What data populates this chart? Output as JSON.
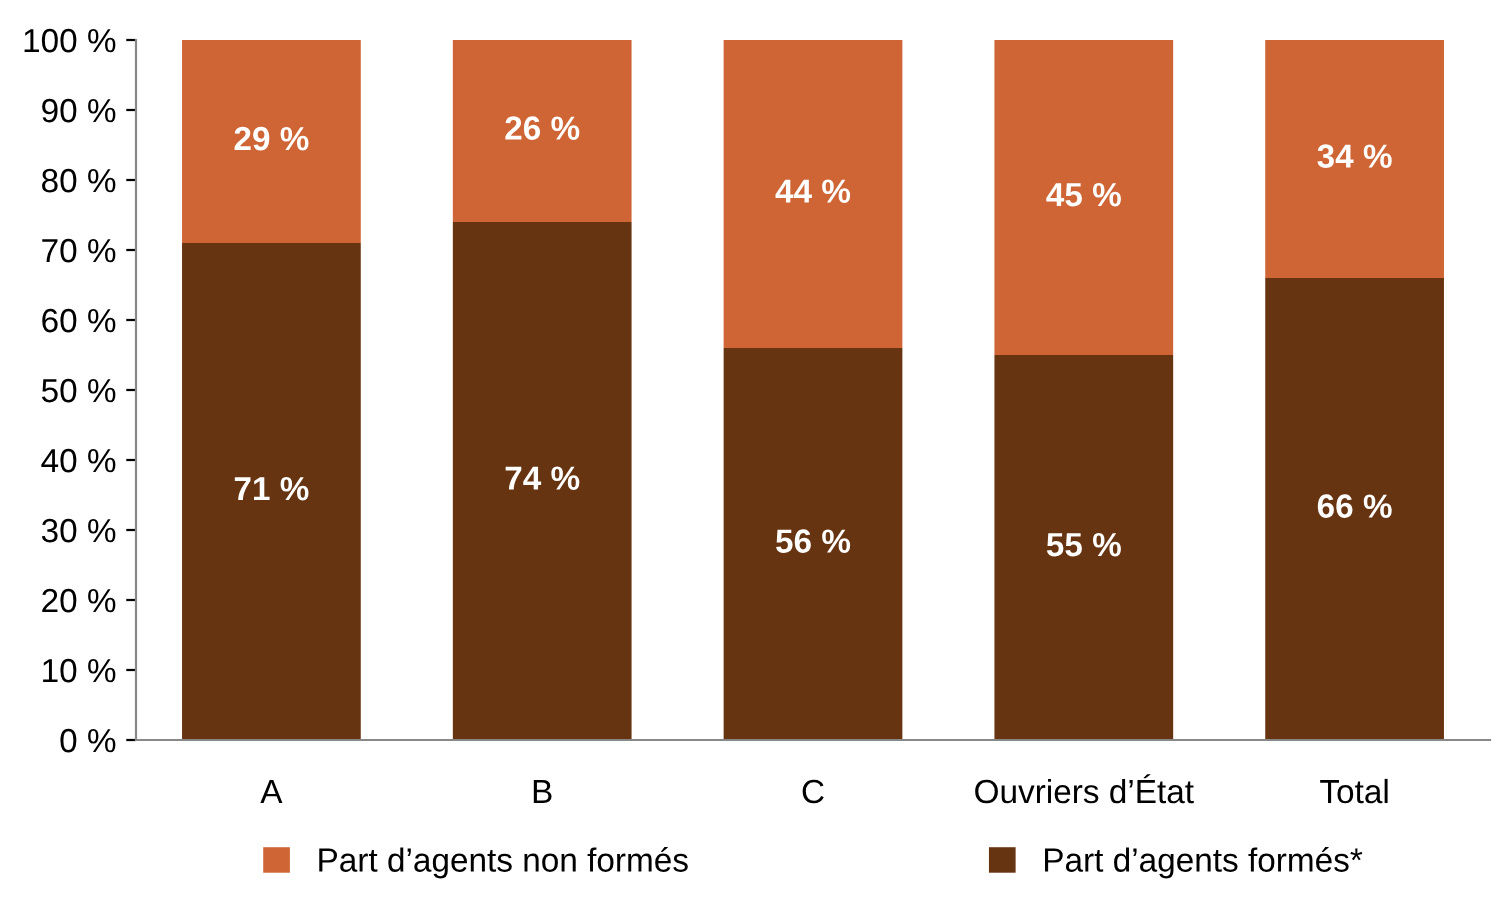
{
  "chart_data": {
    "type": "bar",
    "stacked": true,
    "categories": [
      "A",
      "B",
      "C",
      "Ouvriers d’État",
      "Total"
    ],
    "series": [
      {
        "name": "Part d’agents formés*",
        "color": "#673411",
        "values": [
          71,
          74,
          56,
          55,
          66
        ],
        "value_labels": [
          "71 %",
          "74 %",
          "56 %",
          "55 %",
          "66 %"
        ]
      },
      {
        "name": "Part d’agents non formés",
        "color": "#cf6434",
        "values": [
          29,
          26,
          44,
          45,
          34
        ],
        "value_labels": [
          "29 %",
          "26 %",
          "44 %",
          "45 %",
          "34 %"
        ]
      }
    ],
    "ylim": [
      0,
      100
    ],
    "yticks": [
      {
        "value": 0,
        "label": "0 %"
      },
      {
        "value": 10,
        "label": "10 %"
      },
      {
        "value": 20,
        "label": "20 %"
      },
      {
        "value": 30,
        "label": "30 %"
      },
      {
        "value": 40,
        "label": "40 %"
      },
      {
        "value": 50,
        "label": "50 %"
      },
      {
        "value": 60,
        "label": "60 %"
      },
      {
        "value": 70,
        "label": "70 %"
      },
      {
        "value": 80,
        "label": "80 %"
      },
      {
        "value": 90,
        "label": "90 %"
      },
      {
        "value": 100,
        "label": "100 %"
      }
    ],
    "grid": false,
    "legend": "bottom"
  }
}
